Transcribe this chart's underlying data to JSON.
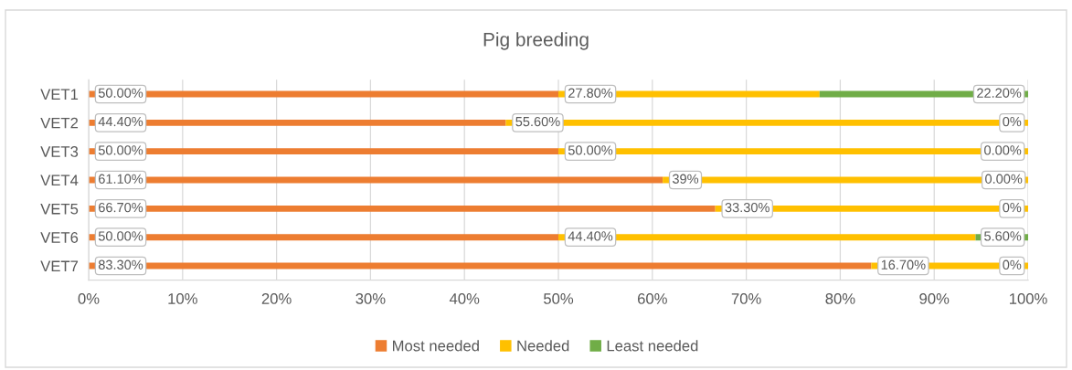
{
  "chart_data": {
    "type": "bar",
    "title": "Pig breeding",
    "orientation": "horizontal",
    "stacked": true,
    "categories": [
      "VET1",
      "VET2",
      "VET3",
      "VET4",
      "VET5",
      "VET6",
      "VET7"
    ],
    "series": [
      {
        "name": "Most needed",
        "color": "#ed7d31",
        "values": [
          50.0,
          44.4,
          50.0,
          61.1,
          66.7,
          50.0,
          83.3
        ],
        "value_labels": [
          "50.00%",
          "44.40%",
          "50.00%",
          "61.10%",
          "66.70%",
          "50.00%",
          "83.30%"
        ]
      },
      {
        "name": "Needed",
        "color": "#ffc000",
        "values": [
          27.8,
          55.6,
          50.0,
          39,
          33.3,
          44.4,
          16.7
        ],
        "value_labels": [
          "27.80%",
          "55.60%",
          "50.00%",
          "39%",
          "33.30%",
          "44.40%",
          "16.70%"
        ]
      },
      {
        "name": "Least needed",
        "color": "#70ad47",
        "values": [
          22.2,
          0,
          0.0,
          0.0,
          0,
          5.6,
          0
        ],
        "value_labels": [
          "22.20%",
          "0%",
          "0.00%",
          "0.00%",
          "0%",
          "5.60%",
          "0%"
        ]
      }
    ],
    "xlim": [
      0,
      100
    ],
    "xticks": [
      {
        "value": 0,
        "label": "0%"
      },
      {
        "value": 10,
        "label": "10%"
      },
      {
        "value": 20,
        "label": "20%"
      },
      {
        "value": 30,
        "label": "30%"
      },
      {
        "value": 40,
        "label": "40%"
      },
      {
        "value": 50,
        "label": "50%"
      },
      {
        "value": 60,
        "label": "60%"
      },
      {
        "value": 70,
        "label": "70%"
      },
      {
        "value": 80,
        "label": "80%"
      },
      {
        "value": 90,
        "label": "90%"
      },
      {
        "value": 100,
        "label": "100%"
      }
    ],
    "grid": "x",
    "legend": "bottom"
  }
}
